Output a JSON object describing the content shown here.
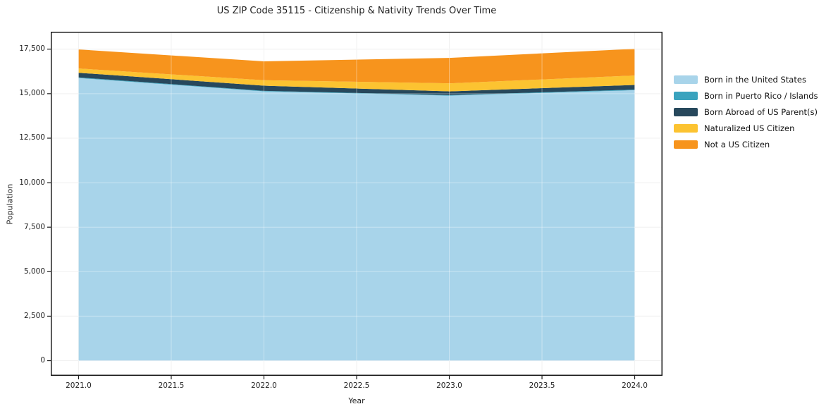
{
  "chart_data": {
    "type": "area",
    "stacked": true,
    "title": "US ZIP Code 35115 - Citizenship & Nativity Trends Over Time",
    "xlabel": "Year",
    "ylabel": "Population",
    "x": [
      2021,
      2022,
      2023,
      2024
    ],
    "series": [
      {
        "name": "Born in the United States",
        "color": "#a8d4ea",
        "values": [
          15880,
          15130,
          14890,
          15195
        ]
      },
      {
        "name": "Born in Puerto Rico / Islands",
        "color": "#3aa3be",
        "values": [
          35,
          30,
          30,
          35
        ]
      },
      {
        "name": "Born Abroad of US Parent(s)",
        "color": "#27485c",
        "values": [
          260,
          290,
          210,
          260
        ]
      },
      {
        "name": "Naturalized US Citizen",
        "color": "#fcc331",
        "values": [
          240,
          305,
          450,
          530
        ]
      },
      {
        "name": "Not a US Citizen",
        "color": "#f7941d",
        "values": [
          1070,
          1060,
          1430,
          1500
        ]
      }
    ],
    "totals": [
      17485,
      16815,
      17010,
      17520
    ],
    "x_ticks": {
      "values": [
        2021.0,
        2021.5,
        2022.0,
        2022.5,
        2023.0,
        2023.5,
        2024.0
      ],
      "labels": [
        "2021.0",
        "2021.5",
        "2022.0",
        "2022.5",
        "2023.0",
        "2023.5",
        "2024.0"
      ]
    },
    "y_ticks": {
      "values": [
        0,
        2500,
        5000,
        7500,
        10000,
        12500,
        15000,
        17500
      ],
      "labels": [
        "0",
        "2,500",
        "5,000",
        "7,500",
        "10,000",
        "12,500",
        "15,000",
        "17,500"
      ]
    },
    "xlim": [
      2020.85,
      2024.15
    ],
    "ylim": [
      -850,
      18480
    ],
    "grid": true,
    "legend_position": "right",
    "style": {
      "background": "#ffffff",
      "grid_color": "#e9e9e9",
      "grid_overlay_color": "rgba(255,255,255,0.38)",
      "spine_color": "#1a1a1a",
      "tick_color": "#1a1a1a",
      "text_color": "#1f1f1f"
    }
  }
}
